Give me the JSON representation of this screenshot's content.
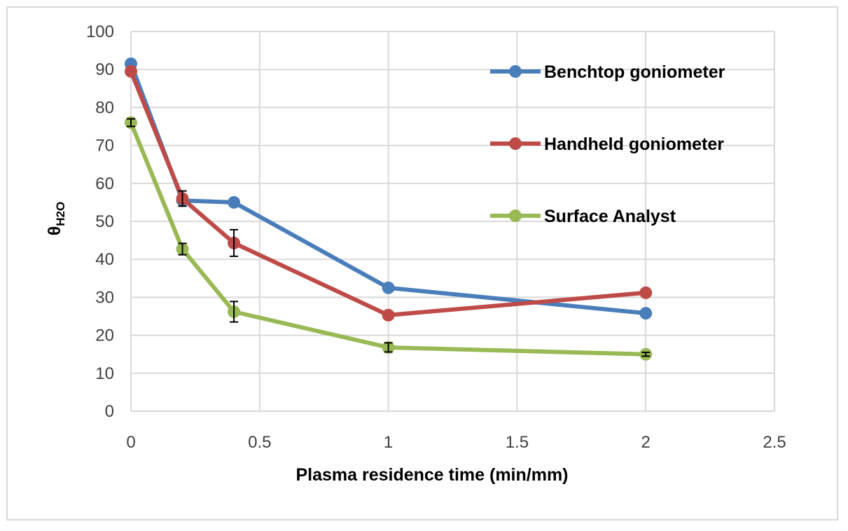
{
  "chart_data": {
    "type": "line",
    "xlabel": "Plasma residence time (min/mm)",
    "ylabel_main": "θ",
    "ylabel_sub": "H2O",
    "xlim": [
      0,
      2.5
    ],
    "ylim": [
      0,
      100
    ],
    "xticks": [
      "0",
      "0.5",
      "1",
      "1.5",
      "2",
      "2.5"
    ],
    "yticks": [
      "0",
      "10",
      "20",
      "30",
      "40",
      "50",
      "60",
      "70",
      "80",
      "90",
      "100"
    ],
    "grid": true,
    "legend": "right",
    "series": [
      {
        "name": "Benchtop goniometer",
        "color": "#4a7ebb",
        "x": [
          0,
          0.2,
          0.4,
          1,
          2
        ],
        "y": [
          91.5,
          55.5,
          55,
          32.5,
          25.8
        ],
        "err": [
          0,
          0,
          0,
          0,
          0
        ]
      },
      {
        "name": "Handheld goniometer",
        "color": "#be4b48",
        "x": [
          0,
          0.2,
          0.4,
          1,
          2
        ],
        "y": [
          89.5,
          56,
          44.3,
          25.3,
          31.2
        ],
        "err": [
          0,
          2,
          3.5,
          0,
          0
        ]
      },
      {
        "name": "Surface Analyst",
        "color": "#98b954",
        "x": [
          0,
          0.2,
          0.4,
          1,
          2
        ],
        "y": [
          76,
          42.7,
          26.2,
          16.8,
          15
        ],
        "err": [
          1,
          1.5,
          2.7,
          1.2,
          0.5
        ]
      }
    ]
  }
}
